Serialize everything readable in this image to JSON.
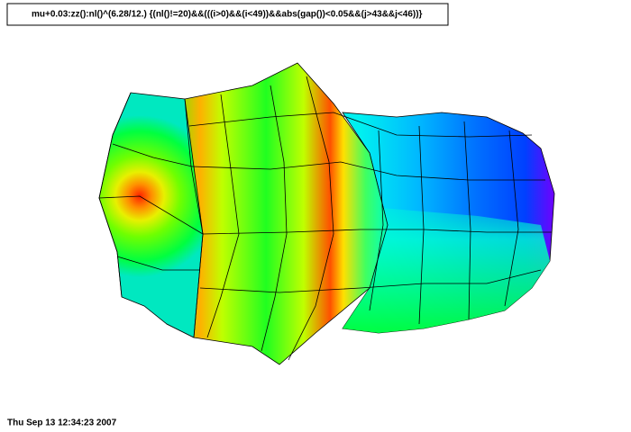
{
  "header": {
    "title": "mu+0.03:zz():nl()^(6.28/12.) {(nl()!=20)&&(((i>0)&&(i<49))&&abs(gap())<0.05&&(j>43&&j<46))}"
  },
  "footer": {
    "timestamp": "Thu Sep 13 12:34:23 2007"
  }
}
